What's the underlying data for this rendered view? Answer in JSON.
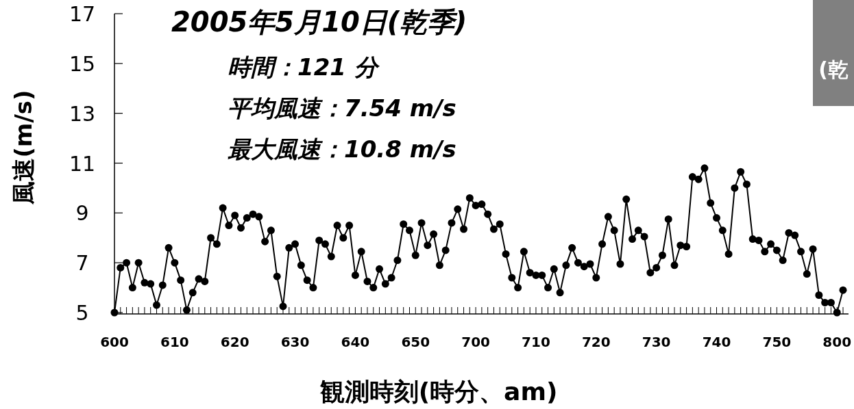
{
  "chart_data": {
    "type": "line",
    "title": "2005年5月10日(乾季)",
    "xlabel": "観測時刻(時分、am)",
    "ylabel": "風速(m/s)",
    "annotations": [
      "時間：121 分",
      "平均風速：7.54 m/s",
      "最大風速：10.8 m/s",
      "(乾"
    ],
    "categories": [
      "600",
      null,
      null,
      null,
      null,
      null,
      null,
      null,
      null,
      null,
      "610",
      null,
      null,
      null,
      null,
      null,
      null,
      null,
      null,
      null,
      "620",
      null,
      null,
      null,
      null,
      null,
      null,
      null,
      null,
      null,
      "630",
      null,
      null,
      null,
      null,
      null,
      null,
      null,
      null,
      null,
      "640",
      null,
      null,
      null,
      null,
      null,
      null,
      null,
      null,
      null,
      "650",
      null,
      null,
      null,
      null,
      null,
      null,
      null,
      null,
      null,
      "700",
      null,
      null,
      null,
      null,
      null,
      null,
      null,
      null,
      null,
      "710",
      null,
      null,
      null,
      null,
      null,
      null,
      null,
      null,
      null,
      "720",
      null,
      null,
      null,
      null,
      null,
      null,
      null,
      null,
      null,
      "730",
      null,
      null,
      null,
      null,
      null,
      null,
      null,
      null,
      null,
      "740",
      null,
      null,
      null,
      null,
      null,
      null,
      null,
      null,
      null,
      "750",
      null,
      null,
      null,
      null,
      null,
      null,
      null,
      null,
      null,
      "800",
      null
    ],
    "values": [
      5.0,
      6.8,
      7.0,
      6.0,
      7.0,
      6.2,
      6.15,
      5.3,
      6.1,
      7.6,
      7.0,
      6.3,
      5.1,
      5.8,
      6.35,
      6.25,
      8.0,
      7.75,
      9.2,
      8.5,
      8.9,
      8.4,
      8.8,
      8.95,
      8.85,
      7.85,
      8.3,
      6.45,
      5.25,
      7.6,
      7.75,
      6.9,
      6.3,
      6.0,
      7.9,
      7.75,
      7.25,
      8.5,
      8.0,
      8.5,
      6.5,
      7.45,
      6.25,
      6.0,
      6.75,
      6.15,
      6.4,
      7.1,
      8.55,
      8.3,
      7.3,
      8.6,
      7.7,
      8.15,
      6.9,
      7.5,
      8.6,
      9.15,
      8.35,
      9.6,
      9.3,
      9.35,
      8.95,
      8.35,
      8.55,
      7.35,
      6.4,
      6.0,
      7.45,
      6.6,
      6.5,
      6.5,
      6.0,
      6.75,
      5.8,
      6.9,
      7.6,
      7.0,
      6.85,
      6.95,
      6.4,
      7.75,
      8.85,
      8.3,
      6.95,
      9.55,
      7.95,
      8.3,
      8.05,
      6.6,
      6.8,
      7.3,
      8.75,
      6.9,
      7.7,
      7.65,
      10.45,
      10.35,
      10.8,
      9.4,
      8.8,
      8.3,
      7.35,
      10.0,
      10.65,
      10.15,
      7.95,
      7.9,
      7.45,
      7.75,
      7.5,
      7.1,
      8.2,
      8.1,
      7.45,
      6.55,
      7.55,
      5.7,
      5.4,
      5.4,
      5.0,
      5.9
    ],
    "color": "#000000",
    "marker": "circle",
    "line_style": "solid",
    "grid": false,
    "ylim": [
      5,
      17
    ],
    "yticks": [
      5,
      7,
      9,
      11,
      13,
      15,
      17
    ]
  }
}
